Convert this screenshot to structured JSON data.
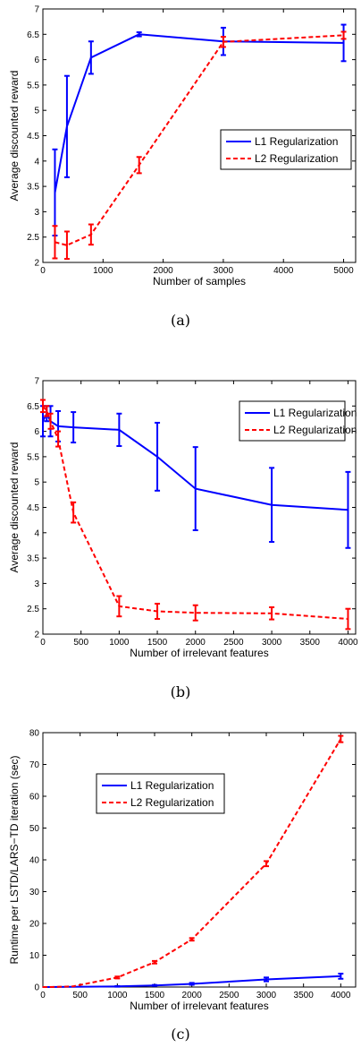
{
  "chart_data": [
    {
      "type": "line",
      "caption": "(a)",
      "xlabel": "Number of samples",
      "ylabel": "Average discounted reward",
      "xlim": [
        0,
        5200
      ],
      "ylim": [
        2,
        7
      ],
      "xticks": [
        0,
        1000,
        2000,
        3000,
        4000,
        5000
      ],
      "yticks": [
        2,
        2.5,
        3,
        3.5,
        4,
        4.5,
        5,
        5.5,
        6,
        6.5,
        7
      ],
      "ytick_labels": [
        "2",
        "2.5",
        "3",
        "3.5",
        "4",
        "4.5",
        "5",
        "5.5",
        "6",
        "6.5",
        "7"
      ],
      "legend_position": "center-right",
      "series": [
        {
          "name": "L1 Regularization",
          "color": "#0000ff",
          "style": "solid",
          "x": [
            200,
            400,
            800,
            1600,
            3000,
            5000
          ],
          "y": [
            3.38,
            4.68,
            6.04,
            6.5,
            6.36,
            6.33
          ],
          "err": [
            0.85,
            1.0,
            0.32,
            0.04,
            0.27,
            0.36
          ]
        },
        {
          "name": "L2 Regularization",
          "color": "#ff0000",
          "style": "dashed",
          "x": [
            200,
            400,
            800,
            1600,
            3000,
            5000
          ],
          "y": [
            2.4,
            2.34,
            2.55,
            3.92,
            6.35,
            6.48
          ],
          "err": [
            0.32,
            0.27,
            0.2,
            0.16,
            0.1,
            0.07
          ]
        }
      ]
    },
    {
      "type": "line",
      "caption": "(b)",
      "xlabel": "Number of irrelevant features",
      "ylabel": "Average discounted reward",
      "xlim": [
        0,
        4100
      ],
      "ylim": [
        2,
        7
      ],
      "xticks": [
        0,
        500,
        1000,
        1500,
        2000,
        2500,
        3000,
        3500,
        4000
      ],
      "yticks": [
        2,
        2.5,
        3,
        3.5,
        4,
        4.5,
        5,
        5.5,
        6,
        6.5,
        7
      ],
      "ytick_labels": [
        "2",
        "2.5",
        "3",
        "3.5",
        "4",
        "4.5",
        "5",
        "5.5",
        "6",
        "6.5",
        "7"
      ],
      "legend_position": "top-right",
      "series": [
        {
          "name": "L1 Regularization",
          "color": "#0000ff",
          "style": "solid",
          "x": [
            0,
            50,
            100,
            200,
            400,
            1000,
            1500,
            2000,
            3000,
            4000
          ],
          "y": [
            6.2,
            6.35,
            6.2,
            6.1,
            6.08,
            6.03,
            5.5,
            4.87,
            4.55,
            4.45
          ],
          "err": [
            0.3,
            0.15,
            0.3,
            0.3,
            0.3,
            0.32,
            0.67,
            0.82,
            0.73,
            0.75
          ]
        },
        {
          "name": "L2 Regularization",
          "color": "#ff0000",
          "style": "dashed",
          "x": [
            0,
            50,
            100,
            200,
            400,
            1000,
            1500,
            2000,
            3000,
            4000
          ],
          "y": [
            6.5,
            6.4,
            6.2,
            5.85,
            4.4,
            2.55,
            2.45,
            2.42,
            2.41,
            2.3
          ],
          "err": [
            0.12,
            0.1,
            0.15,
            0.15,
            0.2,
            0.2,
            0.15,
            0.15,
            0.12,
            0.2
          ]
        }
      ]
    },
    {
      "type": "line",
      "caption": "(c)",
      "xlabel": "Number of irrelevant features",
      "ylabel": "Runtime per LSTD/LARS−TD iteration (sec)",
      "xlim": [
        0,
        4200
      ],
      "ylim": [
        0,
        80
      ],
      "xticks": [
        0,
        500,
        1000,
        1500,
        2000,
        2500,
        3000,
        3500,
        4000
      ],
      "yticks": [
        0,
        10,
        20,
        30,
        40,
        50,
        60,
        70,
        80
      ],
      "ytick_labels": [
        "0",
        "10",
        "20",
        "30",
        "40",
        "50",
        "60",
        "70",
        "80"
      ],
      "legend_position": "top-left",
      "series": [
        {
          "name": "L1 Regularization",
          "color": "#0000ff",
          "style": "solid",
          "x": [
            0,
            50,
            100,
            200,
            400,
            1000,
            1500,
            2000,
            3000,
            4000
          ],
          "y": [
            0,
            0,
            0,
            0.02,
            0.05,
            0.2,
            0.5,
            1.0,
            2.4,
            3.4
          ],
          "err": [
            0,
            0,
            0,
            0,
            0,
            0.1,
            0.15,
            0.3,
            0.6,
            0.8
          ]
        },
        {
          "name": "L2 Regularization",
          "color": "#ff0000",
          "style": "dashed",
          "x": [
            0,
            50,
            100,
            200,
            400,
            1000,
            1500,
            2000,
            3000,
            4000
          ],
          "y": [
            0,
            0,
            0,
            0.05,
            0.2,
            3.0,
            7.8,
            15.0,
            38.8,
            78.0
          ],
          "err": [
            0,
            0,
            0,
            0,
            0,
            0.3,
            0.4,
            0.4,
            0.8,
            1.0
          ]
        }
      ]
    }
  ]
}
